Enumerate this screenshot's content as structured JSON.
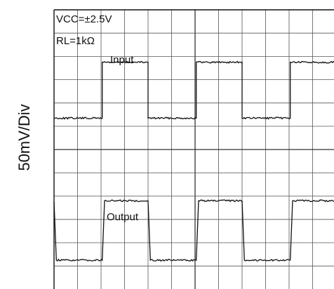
{
  "chart_data": {
    "type": "line",
    "title": "",
    "xlabel": "",
    "ylabel": "50mV/Div",
    "grid": true,
    "annotations": [
      "VCC=±2.5V",
      "RL=1kΩ",
      "Input",
      "Output"
    ],
    "x_divisions_visible": 12,
    "y_divisions": 12,
    "xlim_div": [
      0,
      12
    ],
    "ylim_div": [
      -6,
      6
    ],
    "series": [
      {
        "name": "Input",
        "x_div": [
          0,
          2.05,
          2.05,
          4.0,
          4.0,
          6.05,
          6.05,
          8.0,
          8.0,
          10.05,
          10.05,
          12
        ],
        "y_div": [
          1.35,
          1.35,
          3.75,
          3.75,
          1.35,
          1.35,
          3.75,
          3.75,
          1.35,
          1.35,
          3.75,
          3.75
        ]
      },
      {
        "name": "Output",
        "x_div": [
          0,
          0.1,
          2.05,
          2.15,
          4.0,
          4.1,
          6.05,
          6.15,
          8.0,
          8.1,
          10.05,
          10.15,
          12
        ],
        "y_div": [
          -2.25,
          -4.75,
          -4.75,
          -2.2,
          -2.2,
          -4.75,
          -4.75,
          -2.2,
          -2.2,
          -4.75,
          -4.75,
          -2.2,
          -2.2
        ]
      }
    ]
  }
}
